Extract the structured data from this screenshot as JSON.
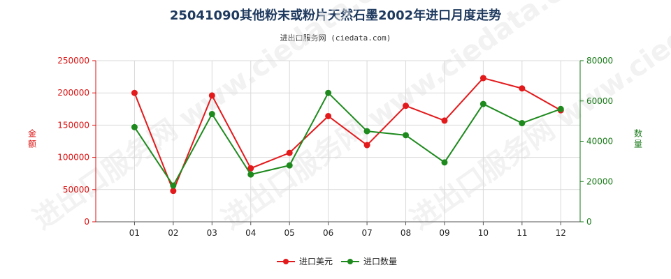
{
  "chart_data": {
    "type": "line",
    "title": "25041090其他粉末或粉片天然石墨2002年进口月度走势",
    "subtitle": "进出口服务网 (ciedata.com)",
    "watermark": "进出口服务网  www.ciedata.com",
    "categories": [
      "01",
      "02",
      "03",
      "04",
      "05",
      "06",
      "07",
      "08",
      "09",
      "10",
      "11",
      "12"
    ],
    "y_left": {
      "label": "金额",
      "lim": [
        0,
        250000
      ],
      "ticks": [
        0,
        50000,
        100000,
        150000,
        200000,
        250000
      ],
      "color": "#dd1111"
    },
    "y_right": {
      "label": "数量",
      "lim": [
        0,
        80000
      ],
      "ticks": [
        0,
        20000,
        40000,
        60000,
        80000
      ],
      "color": "#1a7a1a"
    },
    "series": [
      {
        "name": "进口美元",
        "axis": "left",
        "color": "#e31a1c",
        "values": [
          200000,
          48000,
          196000,
          83000,
          107000,
          164000,
          119000,
          180000,
          157000,
          223000,
          207000,
          173000
        ]
      },
      {
        "name": "进口数量",
        "axis": "right",
        "color": "#1e8a1e",
        "values": [
          47000,
          18000,
          53500,
          23500,
          28000,
          64000,
          45000,
          43000,
          29500,
          58500,
          49000,
          56000
        ]
      }
    ],
    "grid": true,
    "legend_position": "bottom-center"
  }
}
